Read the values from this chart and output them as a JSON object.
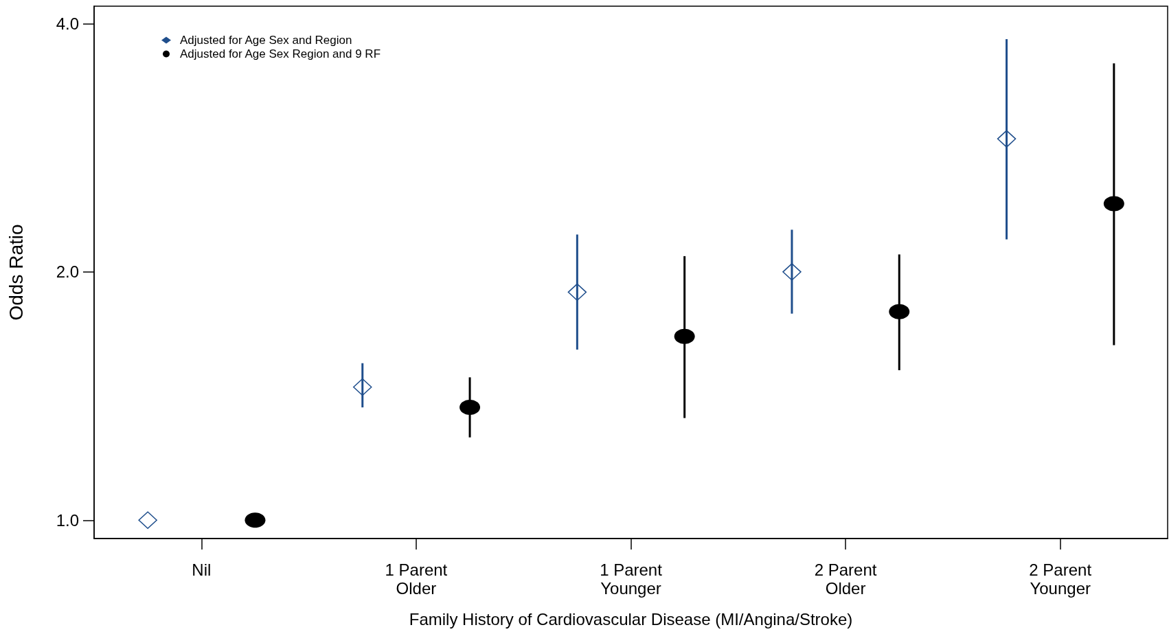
{
  "chart_data": {
    "type": "scatter",
    "xlabel": "Family History of Cardiovascular Disease (MI/Angina/Stroke)",
    "ylabel": "Odds Ratio",
    "categories": [
      "Nil",
      "1 Parent\nOlder",
      "1 Parent\nYounger",
      "2 Parent\nOlder",
      "2 Parent\nYounger"
    ],
    "log": "y",
    "ylim": [
      0.95,
      4.2
    ],
    "yticks": [
      {
        "value": 1,
        "label": "1.0"
      },
      {
        "value": 2,
        "label": "2.0"
      },
      {
        "value": 4,
        "label": "4.0"
      }
    ],
    "grid": false,
    "legend": "top left",
    "series": [
      {
        "name": "Adjusted for Age Sex and Region",
        "color": "#1f4e8c",
        "marker": "diamond",
        "values": [
          1.0,
          1.45,
          1.89,
          2.0,
          2.9
        ],
        "errors": [
          null,
          [
            1.37,
            1.55
          ],
          [
            1.61,
            2.22
          ],
          [
            1.78,
            2.25
          ],
          [
            2.19,
            3.83
          ]
        ]
      },
      {
        "name": "Adjusted for Age Sex Region and 9 RF",
        "color": "#000000",
        "marker": "circle",
        "values": [
          1.0,
          1.37,
          1.67,
          1.79,
          2.42
        ],
        "errors": [
          null,
          [
            1.26,
            1.49
          ],
          [
            1.33,
            2.09
          ],
          [
            1.52,
            2.1
          ],
          [
            1.63,
            3.58
          ]
        ]
      }
    ]
  }
}
